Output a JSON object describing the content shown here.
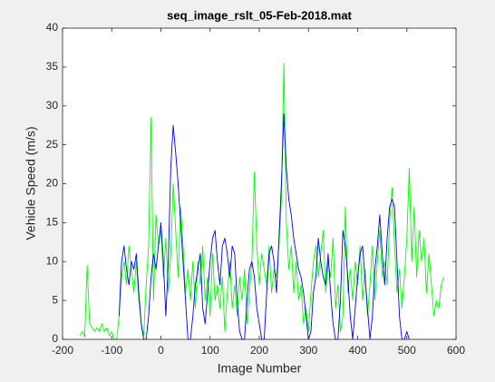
{
  "chart_data": {
    "type": "line",
    "title": "seq_image_rslt_05-Feb-2018.mat",
    "x_label": "Image Number",
    "y_label": "Vehicle Speed (m/s)",
    "xlim": [
      -200,
      600
    ],
    "xticks": [
      -200,
      -100,
      0,
      100,
      200,
      300,
      400,
      500,
      600
    ],
    "ylim": [
      0,
      40
    ],
    "yticks": [
      0,
      5,
      10,
      15,
      20,
      25,
      30,
      35,
      40
    ],
    "grid": false,
    "x": [
      -165,
      -160,
      -155,
      -150,
      -145,
      -140,
      -135,
      -130,
      -125,
      -120,
      -115,
      -110,
      -105,
      -100,
      -95,
      -90,
      -85,
      -80,
      -75,
      -70,
      -65,
      -60,
      -55,
      -50,
      -45,
      -40,
      -35,
      -30,
      -25,
      -20,
      -15,
      -10,
      -5,
      0,
      5,
      10,
      15,
      20,
      25,
      30,
      35,
      40,
      45,
      50,
      55,
      60,
      65,
      70,
      75,
      80,
      85,
      90,
      95,
      100,
      105,
      110,
      115,
      120,
      125,
      130,
      135,
      140,
      145,
      150,
      155,
      160,
      165,
      170,
      175,
      180,
      185,
      190,
      195,
      200,
      205,
      210,
      215,
      220,
      225,
      230,
      235,
      240,
      245,
      250,
      255,
      260,
      265,
      270,
      275,
      280,
      285,
      290,
      295,
      300,
      305,
      310,
      315,
      320,
      325,
      330,
      335,
      340,
      345,
      350,
      355,
      360,
      365,
      370,
      375,
      380,
      385,
      390,
      395,
      400,
      405,
      410,
      415,
      420,
      425,
      430,
      435,
      440,
      445,
      450,
      455,
      460,
      465,
      470,
      475,
      480,
      485,
      490,
      495,
      500,
      505,
      510,
      515,
      520,
      525,
      530,
      535,
      540,
      545,
      550,
      555,
      560,
      565,
      570,
      575
    ],
    "series": [
      {
        "color": "#00ff00",
        "values": [
          0.5,
          1,
          0.3,
          9.5,
          2,
          1.5,
          1,
          1.5,
          1,
          2,
          1,
          1.5,
          0.5,
          1,
          0,
          0,
          3,
          8,
          10,
          7,
          12,
          9,
          6,
          10,
          5,
          2,
          0.5,
          7,
          12,
          28.5,
          5,
          16,
          12,
          14,
          8,
          13,
          6,
          11,
          20,
          14,
          8,
          17,
          12,
          6,
          9,
          5,
          10,
          4,
          10,
          7,
          12,
          5,
          8,
          3,
          11,
          5,
          7,
          4,
          8,
          1,
          6,
          10,
          4,
          7,
          3,
          8,
          5,
          9,
          2,
          6,
          10,
          21.5,
          12,
          7,
          11,
          9,
          7,
          12,
          6,
          9,
          8,
          12,
          18,
          35.5,
          15,
          9,
          12,
          6,
          10,
          5,
          7,
          2,
          4,
          1,
          6,
          10,
          12,
          8,
          11,
          14,
          6,
          10,
          8,
          13,
          4,
          7,
          1,
          3,
          17,
          6,
          9,
          5,
          10,
          7,
          12,
          5,
          9,
          3,
          7,
          12,
          5,
          10,
          14,
          8,
          10,
          7,
          15,
          19.5,
          12,
          6,
          9,
          4,
          8,
          13,
          22,
          10,
          17,
          8,
          14,
          10,
          13,
          6,
          11,
          7,
          3,
          5,
          4,
          7,
          8
        ]
      },
      {
        "color": "#0000ff",
        "values": [
          null,
          null,
          null,
          null,
          null,
          null,
          null,
          null,
          null,
          null,
          null,
          null,
          null,
          null,
          null,
          null,
          3,
          10,
          12,
          9,
          7,
          10,
          9,
          11,
          6,
          2,
          0,
          0,
          3,
          8,
          11,
          9,
          12,
          15,
          10,
          3,
          10,
          22,
          27.5,
          24,
          20,
          15,
          10,
          5,
          0,
          0,
          3,
          7,
          9,
          11,
          4,
          2,
          6,
          10,
          13,
          14,
          10,
          7,
          12,
          13,
          11,
          8,
          12,
          11,
          5,
          1,
          0,
          0,
          5,
          9,
          10,
          8,
          4,
          2,
          0,
          0,
          6,
          11,
          12,
          10,
          6,
          13,
          20,
          29,
          22,
          18,
          16,
          13,
          11,
          9,
          8,
          6,
          3,
          0,
          1,
          6,
          8,
          13,
          10,
          8,
          7,
          11,
          6,
          2,
          0,
          0,
          5,
          14,
          12,
          8,
          3,
          0,
          4,
          8,
          11,
          12,
          8,
          4,
          0,
          3,
          9,
          12,
          16,
          11,
          7,
          13,
          17,
          18,
          17,
          10,
          3,
          0,
          0,
          1,
          0,
          null,
          null,
          null,
          null,
          null,
          null,
          null,
          null,
          null,
          null,
          null,
          null,
          null,
          null
        ]
      }
    ]
  }
}
